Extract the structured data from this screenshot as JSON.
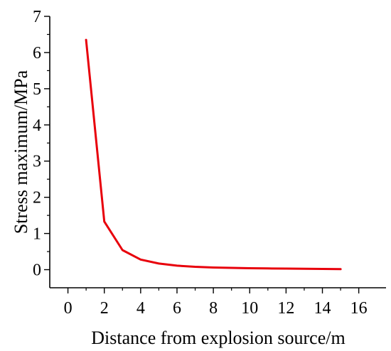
{
  "chart_data": {
    "type": "line",
    "title": "",
    "xlabel": "Distance from explosion source/m",
    "ylabel": "Stress maximum/MPa",
    "xlim": [
      -1,
      17.5
    ],
    "ylim": [
      -0.5,
      7
    ],
    "x_ticks": [
      0,
      2,
      4,
      6,
      8,
      10,
      12,
      14,
      16
    ],
    "y_ticks": [
      0,
      1,
      2,
      3,
      4,
      5,
      6,
      7
    ],
    "x_tick_labels": [
      "0",
      "2",
      "4",
      "6",
      "8",
      "10",
      "12",
      "14",
      "16"
    ],
    "y_tick_labels": [
      "0",
      "1",
      "2",
      "3",
      "4",
      "5",
      "6",
      "7"
    ],
    "grid": false,
    "legend": "none",
    "series": [
      {
        "color": "#e8000b",
        "x": [
          1,
          2,
          3,
          4,
          5,
          6,
          7,
          8,
          9,
          10,
          11,
          12,
          13,
          14,
          15
        ],
        "y": [
          6.35,
          1.33,
          0.54,
          0.28,
          0.17,
          0.11,
          0.08,
          0.06,
          0.05,
          0.04,
          0.035,
          0.03,
          0.025,
          0.02,
          0.015
        ]
      }
    ]
  }
}
